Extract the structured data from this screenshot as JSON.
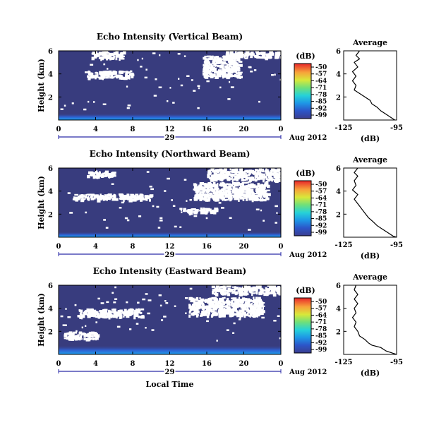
{
  "chart_data": [
    {
      "type": "heatmap",
      "title": "Echo Intensity (Vertical Beam)",
      "ylabel": "Height (km)",
      "xlabel": "",
      "x_ticks": [
        "0",
        "4",
        "8",
        "12",
        "16",
        "20",
        "0"
      ],
      "y_ticks": [
        "6",
        "4",
        "2"
      ],
      "date_day": "29",
      "date_month": "Aug 2012",
      "xlim": [
        0,
        24
      ],
      "ylim": [
        0,
        6
      ],
      "colorbar": {
        "unit": "(dB)",
        "ticks": [
          "-50",
          "-57",
          "-64",
          "-71",
          "-78",
          "-85",
          "-92",
          "-99"
        ],
        "range": [
          -99,
          -50
        ]
      },
      "clear_regions": [
        {
          "t": [
            3.0,
            8.0
          ],
          "h": [
            3.7,
            4.3
          ]
        },
        {
          "t": [
            15.5,
            19.5
          ],
          "h": [
            3.8,
            5.6
          ]
        },
        {
          "t": [
            18.0,
            24.0
          ],
          "h": [
            5.5,
            6.0
          ]
        },
        {
          "t": [
            3.5,
            7.0
          ],
          "h": [
            5.4,
            6.0
          ]
        }
      ],
      "surface_band_km": 0.55,
      "profile": {
        "title": "Average",
        "xlabel": "(dB)",
        "x_ticks": [
          "-125",
          "-95"
        ],
        "y_ticks": [
          "6",
          "4",
          "2"
        ],
        "xlim": [
          -125,
          -95
        ],
        "ylim": [
          0,
          6
        ],
        "points": [
          [
            -116,
            6.0
          ],
          [
            -118,
            5.6
          ],
          [
            -116,
            5.3
          ],
          [
            -119,
            5.0
          ],
          [
            -117,
            4.6
          ],
          [
            -120,
            4.2
          ],
          [
            -118,
            3.8
          ],
          [
            -120,
            3.4
          ],
          [
            -118,
            3.0
          ],
          [
            -119,
            2.6
          ],
          [
            -116,
            2.3
          ],
          [
            -113,
            2.0
          ],
          [
            -110,
            1.7
          ],
          [
            -109,
            1.4
          ],
          [
            -106,
            1.1
          ],
          [
            -104,
            0.8
          ],
          [
            -101,
            0.5
          ],
          [
            -98,
            0.2
          ],
          [
            -96,
            0.0
          ]
        ]
      }
    },
    {
      "type": "heatmap",
      "title": "Echo Intensity (Northward Beam)",
      "ylabel": "Height (km)",
      "xlabel": "",
      "x_ticks": [
        "0",
        "4",
        "8",
        "12",
        "16",
        "20",
        "0"
      ],
      "y_ticks": [
        "6",
        "4",
        "2"
      ],
      "date_day": "29",
      "date_month": "Aug 2012",
      "xlim": [
        0,
        24
      ],
      "ylim": [
        0,
        6
      ],
      "colorbar": {
        "unit": "(dB)",
        "ticks": [
          "-50",
          "-57",
          "-64",
          "-71",
          "-78",
          "-85",
          "-92",
          "-99"
        ],
        "range": [
          -99,
          -50
        ]
      },
      "clear_regions": [
        {
          "t": [
            1.5,
            10.0
          ],
          "h": [
            3.3,
            3.8
          ]
        },
        {
          "t": [
            3.0,
            6.0
          ],
          "h": [
            5.3,
            5.8
          ]
        },
        {
          "t": [
            14.5,
            22.5
          ],
          "h": [
            3.3,
            4.8
          ]
        },
        {
          "t": [
            16.0,
            24.0
          ],
          "h": [
            5.0,
            6.0
          ]
        },
        {
          "t": [
            13.0,
            17.0
          ],
          "h": [
            2.2,
            2.6
          ]
        }
      ],
      "surface_band_km": 0.45,
      "profile": {
        "title": "Average",
        "xlabel": "(dB)",
        "x_ticks": [
          "-125",
          "-95"
        ],
        "y_ticks": [
          "6",
          "4",
          "2"
        ],
        "xlim": [
          -125,
          -95
        ],
        "ylim": [
          0,
          6
        ],
        "points": [
          [
            -117,
            6.0
          ],
          [
            -119,
            5.6
          ],
          [
            -117,
            5.3
          ],
          [
            -119,
            4.9
          ],
          [
            -118,
            4.5
          ],
          [
            -120,
            4.1
          ],
          [
            -117,
            3.7
          ],
          [
            -119,
            3.3
          ],
          [
            -117,
            2.9
          ],
          [
            -115,
            2.5
          ],
          [
            -113,
            2.1
          ],
          [
            -111,
            1.7
          ],
          [
            -108,
            1.3
          ],
          [
            -106,
            1.0
          ],
          [
            -103,
            0.7
          ],
          [
            -100,
            0.4
          ],
          [
            -97,
            0.1
          ],
          [
            -95,
            0.0
          ]
        ]
      }
    },
    {
      "type": "heatmap",
      "title": "Echo Intensity (Eastward Beam)",
      "ylabel": "Height (km)",
      "xlabel": "Local Time",
      "x_ticks": [
        "0",
        "4",
        "8",
        "12",
        "16",
        "20",
        "0"
      ],
      "y_ticks": [
        "6",
        "4",
        "2"
      ],
      "date_day": "29",
      "date_month": "Aug 2012",
      "xlim": [
        0,
        24
      ],
      "ylim": [
        0,
        6
      ],
      "colorbar": {
        "unit": "(dB)",
        "ticks": [
          "-50",
          "-57",
          "-64",
          "-71",
          "-78",
          "-85",
          "-92",
          "-99"
        ],
        "range": [
          -99,
          -50
        ]
      },
      "clear_regions": [
        {
          "t": [
            2.0,
            9.0
          ],
          "h": [
            3.3,
            4.0
          ]
        },
        {
          "t": [
            14.0,
            22.0
          ],
          "h": [
            3.4,
            5.0
          ]
        },
        {
          "t": [
            16.5,
            24.0
          ],
          "h": [
            5.3,
            6.0
          ]
        },
        {
          "t": [
            0.5,
            4.0
          ],
          "h": [
            1.4,
            2.0
          ]
        }
      ],
      "surface_band_km": 0.75,
      "profile": {
        "title": "Average",
        "xlabel": "(dB)",
        "x_ticks": [
          "-125",
          "-95"
        ],
        "y_ticks": [
          "6",
          "4",
          "2"
        ],
        "xlim": [
          -125,
          -95
        ],
        "ylim": [
          0,
          6
        ],
        "points": [
          [
            -118,
            6.0
          ],
          [
            -119,
            5.6
          ],
          [
            -117,
            5.2
          ],
          [
            -119,
            4.8
          ],
          [
            -117,
            4.4
          ],
          [
            -119,
            4.0
          ],
          [
            -118,
            3.6
          ],
          [
            -120,
            3.2
          ],
          [
            -118,
            2.8
          ],
          [
            -119,
            2.4
          ],
          [
            -117,
            2.0
          ],
          [
            -116,
            1.6
          ],
          [
            -113,
            1.3
          ],
          [
            -111,
            1.0
          ],
          [
            -109,
            0.8
          ],
          [
            -104,
            0.6
          ],
          [
            -101,
            0.3
          ],
          [
            -97,
            0.1
          ],
          [
            -95,
            0.0
          ]
        ]
      }
    }
  ]
}
